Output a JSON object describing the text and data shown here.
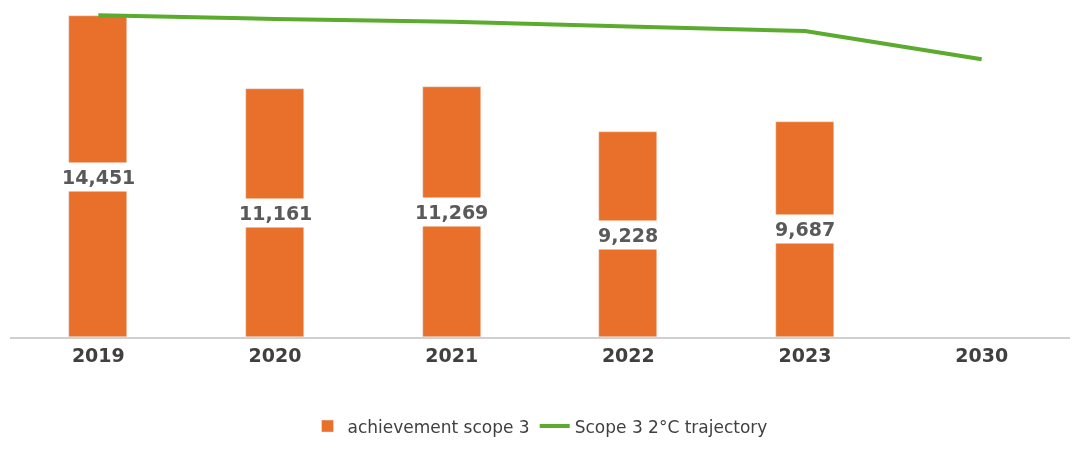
{
  "chart_data": {
    "type": "bar",
    "categories": [
      "2019",
      "2020",
      "2021",
      "2022",
      "2023",
      "2030"
    ],
    "series": [
      {
        "name": "achievement scope 3",
        "color": "#e8702a",
        "values": [
          14451,
          11161,
          11269,
          9228,
          9687,
          null
        ],
        "value_labels": [
          "14,451",
          "11,161",
          "11,269",
          "9,228",
          "9,687",
          null
        ]
      },
      {
        "name": "Scope 3 2°C trajectory",
        "type": "line",
        "color": "#5aab2e",
        "values": [
          14493,
          14324,
          14198,
          13988,
          13777,
          12513
        ]
      }
    ],
    "legend": "bottom"
  }
}
